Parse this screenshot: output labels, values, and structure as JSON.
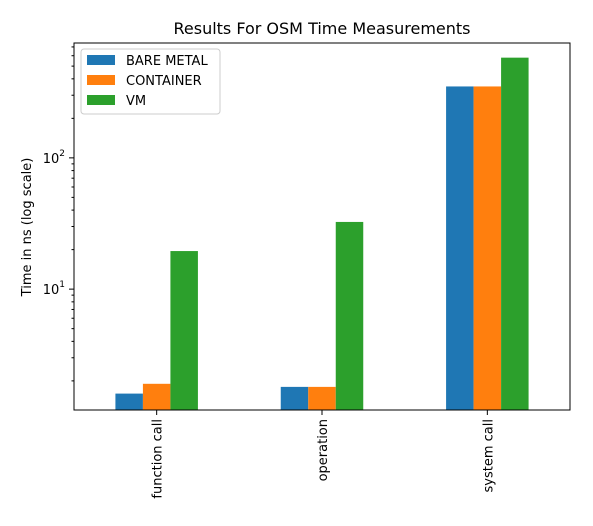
{
  "chart_data": {
    "type": "bar",
    "title": "Results For OSM Time Measurements",
    "xlabel": "",
    "ylabel": "Time in ns (log scale)",
    "yscale": "log",
    "ylim": [
      1.2,
      750
    ],
    "ytick_labels": [
      {
        "value": 10,
        "base": "10",
        "exp": "1"
      },
      {
        "value": 100,
        "base": "10",
        "exp": "2"
      }
    ],
    "categories": [
      "function call",
      "operation",
      "system call"
    ],
    "series": [
      {
        "name": "BARE METAL",
        "color": "#1f77b4",
        "values": [
          1.6,
          1.8,
          350
        ]
      },
      {
        "name": "CONTAINER",
        "color": "#ff7f0e",
        "values": [
          1.9,
          1.8,
          350
        ]
      },
      {
        "name": "VM",
        "color": "#2ca02c",
        "values": [
          19.5,
          32.5,
          580
        ]
      }
    ],
    "legend": "top-left",
    "grid": false
  }
}
